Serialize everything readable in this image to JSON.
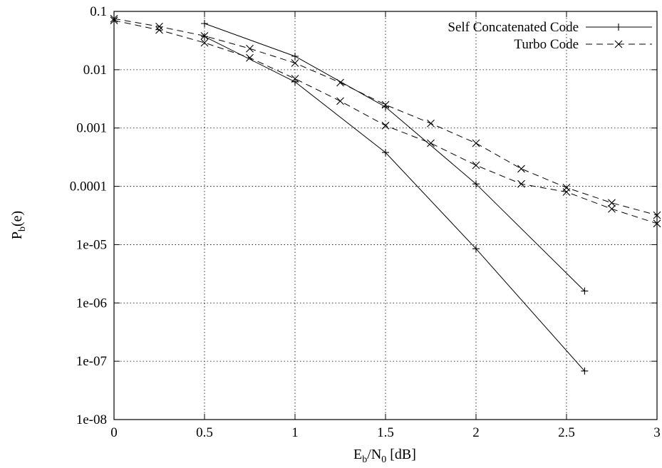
{
  "chart_data": {
    "type": "line",
    "title": "",
    "xlabel": {
      "main": "E",
      "sub1": "b",
      "mid": "/N",
      "sub2": "0",
      "tail": " [dB]"
    },
    "ylabel": {
      "main": "P",
      "sub": "b",
      "tail": "(e)"
    },
    "xlim": [
      0,
      3
    ],
    "ylim": [
      1e-08,
      0.1
    ],
    "yscale": "log",
    "grid": true,
    "legend": "top-right",
    "x_ticks": [
      "0",
      "0.5",
      "1",
      "1.5",
      "2",
      "2.5",
      "3"
    ],
    "y_ticks": [
      "1e-08",
      "1e-07",
      "1e-06",
      "1e-05",
      "0.0001",
      "0.001",
      "0.01",
      "0.1"
    ],
    "series": [
      {
        "name": "Self Concatenated Code",
        "marker": "+",
        "style": "solid",
        "curves": [
          {
            "x": [
              0.5,
              1,
              1.5,
              2,
              2.6
            ],
            "y": [
              0.062,
              0.017,
              0.0023,
              0.00011,
              1.6e-06
            ]
          },
          {
            "x": [
              0.5,
              1,
              1.5,
              2,
              2.6
            ],
            "y": [
              0.037,
              0.0062,
              0.00038,
              8.5e-06,
              6.8e-08
            ]
          }
        ]
      },
      {
        "name": "Turbo Code",
        "marker": "x",
        "style": "dashed",
        "curves": [
          {
            "x": [
              0,
              0.25,
              0.5,
              0.75,
              1,
              1.25,
              1.5,
              1.75,
              2,
              2.25,
              2.5,
              2.75,
              3
            ],
            "y": [
              0.075,
              0.055,
              0.038,
              0.023,
              0.013,
              0.006,
              0.0025,
              0.0012,
              0.00055,
              0.0002,
              9.5e-05,
              5.2e-05,
              3.2e-05
            ]
          },
          {
            "x": [
              0,
              0.25,
              0.5,
              0.75,
              1,
              1.25,
              1.5,
              1.75,
              2,
              2.25,
              2.5,
              2.75,
              3
            ],
            "y": [
              0.07,
              0.048,
              0.029,
              0.016,
              0.007,
              0.0029,
              0.0011,
              0.00055,
              0.00023,
              0.00011,
              8e-05,
              4.1e-05,
              2.3e-05
            ]
          }
        ]
      }
    ]
  }
}
